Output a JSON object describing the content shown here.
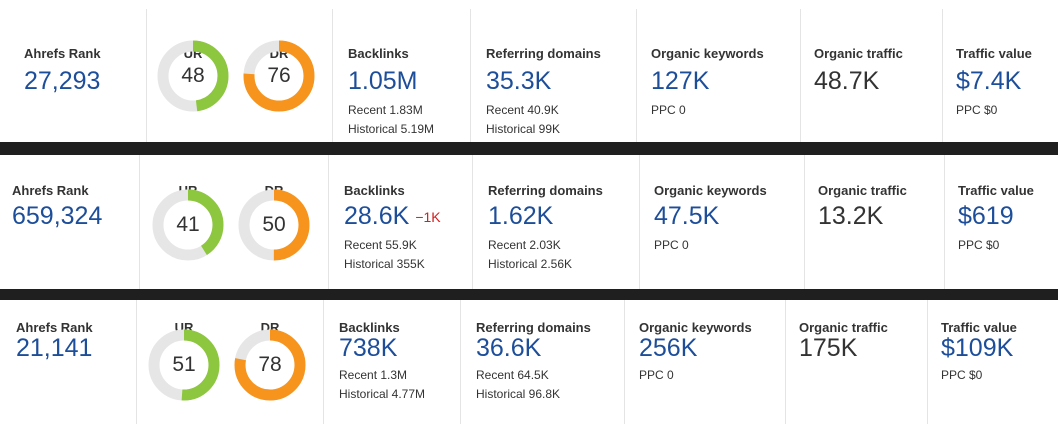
{
  "colors": {
    "ur": "#8dc63f",
    "dr": "#f7941d",
    "track": "#e6e6e6",
    "value": "#1d4e9a",
    "delta": "#d21f1f"
  },
  "labels": {
    "rank": "Ahrefs Rank",
    "ur": "UR",
    "dr": "DR",
    "backlinks": "Backlinks",
    "refdomains": "Referring domains",
    "keywords": "Organic keywords",
    "traffic": "Organic traffic",
    "value": "Traffic value"
  },
  "rows": [
    {
      "rank": "27,293",
      "ur": 48,
      "dr": 76,
      "backlinks": "1.05M",
      "backlinks_delta": "",
      "backlinks_recent": "Recent 1.83M",
      "backlinks_historical": "Historical 5.19M",
      "refdomains": "35.3K",
      "refdomains_recent": "Recent 40.9K",
      "refdomains_historical": "Historical 99K",
      "keywords": "127K",
      "keywords_ppc": "PPC 0",
      "traffic": "48.7K",
      "value": "$7.4K",
      "value_ppc": "PPC $0"
    },
    {
      "rank": "659,324",
      "ur": 41,
      "dr": 50,
      "backlinks": "28.6K",
      "backlinks_delta": "−1K",
      "backlinks_recent": "Recent 55.9K",
      "backlinks_historical": "Historical 355K",
      "refdomains": "1.62K",
      "refdomains_recent": "Recent 2.03K",
      "refdomains_historical": "Historical 2.56K",
      "keywords": "47.5K",
      "keywords_ppc": "PPC 0",
      "traffic": "13.2K",
      "value": "$619",
      "value_ppc": "PPC $0"
    },
    {
      "rank": "21,141",
      "ur": 51,
      "dr": 78,
      "backlinks": "738K",
      "backlinks_delta": "",
      "backlinks_recent": "Recent 1.3M",
      "backlinks_historical": "Historical 4.77M",
      "refdomains": "36.6K",
      "refdomains_recent": "Recent 64.5K",
      "refdomains_historical": "Historical 96.8K",
      "keywords": "256K",
      "keywords_ppc": "PPC 0",
      "traffic": "175K",
      "value": "$109K",
      "value_ppc": "PPC $0"
    }
  ]
}
